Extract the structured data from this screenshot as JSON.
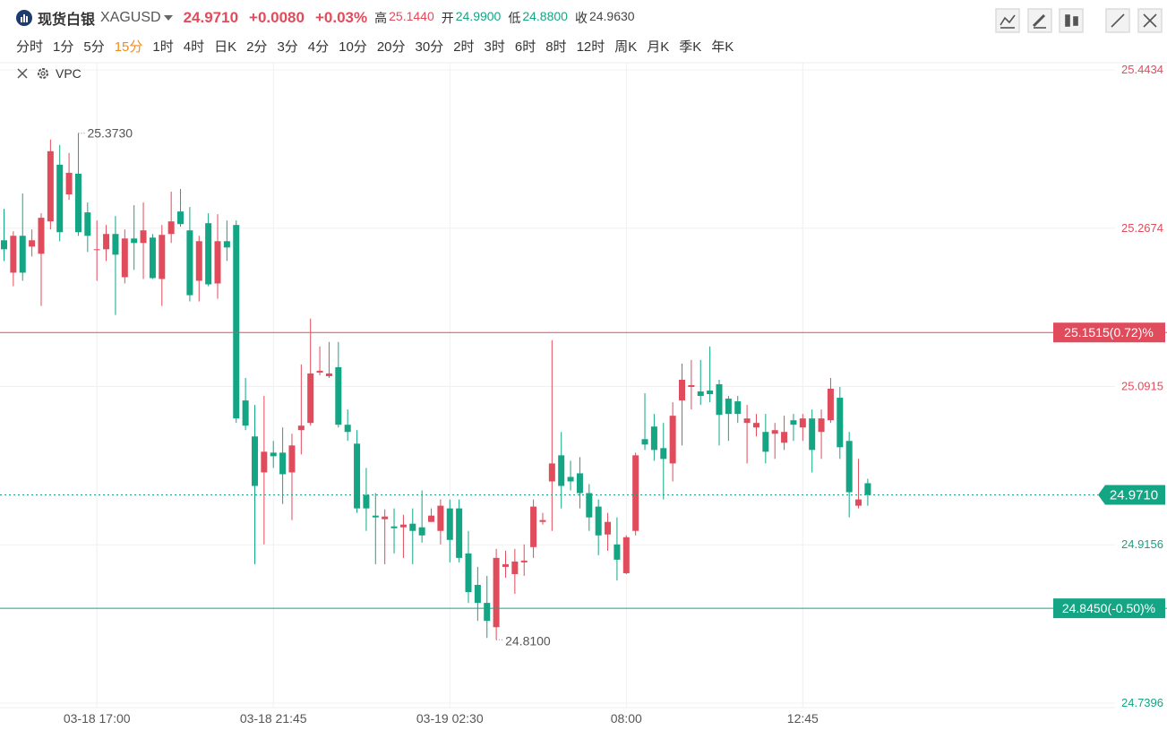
{
  "header": {
    "name": "现货白银",
    "symbol": "XAGUSD",
    "price": "24.9710",
    "change": "+0.0080",
    "change_pct": "+0.03%",
    "stats": [
      {
        "label": "高",
        "value": "25.1440",
        "color": "#e04c5c"
      },
      {
        "label": "开",
        "value": "24.9900",
        "color": "#14a584"
      },
      {
        "label": "低",
        "value": "24.8800",
        "color": "#14a584"
      },
      {
        "label": "收",
        "value": "24.9630",
        "color": "#444444"
      }
    ]
  },
  "periods": [
    "分时",
    "1分",
    "5分",
    "15分",
    "1时",
    "4时",
    "日K",
    "2分",
    "3分",
    "4分",
    "10分",
    "20分",
    "30分",
    "2时",
    "3时",
    "6时",
    "8时",
    "12时",
    "周K",
    "月K",
    "季K",
    "年K"
  ],
  "active_period": "15分",
  "indicator": "VPC",
  "chart_data": {
    "type": "candlestick",
    "categories": [
      null,
      null,
      null,
      null,
      null,
      null,
      null,
      null,
      null,
      null,
      "03-18 17:00",
      null,
      null,
      null,
      null,
      null,
      null,
      null,
      null,
      null,
      null,
      null,
      null,
      null,
      null,
      null,
      null,
      null,
      null,
      "03-18 21:45",
      null,
      null,
      null,
      null,
      null,
      null,
      null,
      null,
      null,
      null,
      null,
      null,
      null,
      null,
      null,
      null,
      null,
      null,
      "03-19 02:30",
      null,
      null,
      null,
      null,
      null,
      null,
      null,
      null,
      null,
      null,
      null,
      null,
      null,
      null,
      null,
      null,
      null,
      null,
      "08:00",
      null,
      null,
      null,
      null,
      null,
      null,
      null,
      null,
      null,
      null,
      null,
      null,
      null,
      null,
      null,
      null,
      null,
      null,
      "12:45",
      null,
      null,
      null,
      null,
      null,
      null,
      null
    ],
    "open": [
      25.254,
      25.218,
      25.259,
      25.247,
      25.239,
      25.275,
      25.338,
      25.305,
      25.328,
      25.285,
      25.243,
      25.244,
      25.261,
      25.213,
      25.256,
      25.251,
      25.257,
      25.211,
      25.261,
      25.286,
      25.265,
      25.209,
      25.273,
      25.206,
      25.253,
      25.271,
      25.076,
      25.036,
      24.996,
      25.018,
      25.018,
      24.996,
      25.043,
      25.051,
      25.107,
      25.103,
      25.113,
      25.049,
      25.028,
      24.971,
      24.948,
      24.944,
      24.936,
      24.935,
      24.939,
      24.935,
      24.941,
      24.931,
      24.956,
      24.956,
      24.906,
      24.871,
      24.851,
      24.824,
      24.891,
      24.883,
      24.896,
      24.913,
      24.941,
      24.986,
      25.015,
      24.991,
      24.995,
      24.973,
      24.958,
      24.927,
      24.916,
      24.884,
      24.931,
      25.033,
      25.047,
      25.023,
      25.006,
      25.076,
      25.091,
      25.086,
      25.087,
      25.094,
      25.078,
      25.075,
      25.051,
      25.046,
      25.041,
      25.039,
      25.029,
      25.054,
      25.046,
      25.056,
      25.041,
      25.054,
      25.079,
      25.031,
      24.959,
      24.984
    ],
    "high": [
      25.289,
      25.264,
      25.306,
      25.266,
      25.284,
      25.366,
      25.36,
      25.351,
      25.373,
      25.296,
      25.276,
      25.271,
      25.281,
      25.266,
      25.293,
      25.296,
      25.261,
      25.271,
      25.308,
      25.311,
      25.291,
      25.259,
      25.284,
      25.283,
      25.276,
      25.276,
      25.101,
      25.071,
      25.081,
      25.031,
      25.046,
      25.039,
      25.116,
      25.167,
      25.136,
      25.141,
      25.141,
      25.066,
      25.043,
      25.001,
      24.973,
      24.955,
      24.956,
      24.949,
      24.956,
      24.976,
      24.956,
      24.966,
      24.966,
      24.966,
      24.931,
      24.891,
      24.881,
      24.911,
      24.909,
      24.911,
      24.916,
      24.966,
      24.951,
      25.143,
      25.041,
      25.009,
      25.013,
      24.983,
      24.966,
      24.951,
      24.946,
      24.926,
      25.018,
      25.084,
      25.061,
      25.051,
      25.074,
      25.117,
      25.121,
      25.121,
      25.136,
      25.099,
      25.081,
      25.081,
      25.071,
      25.061,
      25.061,
      25.051,
      25.059,
      25.061,
      25.061,
      25.066,
      25.066,
      25.101,
      25.091,
      25.041,
      25.011,
      24.989
    ],
    "low": [
      25.231,
      25.203,
      25.209,
      25.236,
      25.181,
      25.266,
      25.253,
      25.299,
      25.259,
      25.241,
      25.209,
      25.231,
      25.171,
      25.206,
      25.221,
      25.211,
      25.211,
      25.181,
      25.251,
      25.269,
      25.186,
      25.186,
      25.203,
      25.189,
      25.231,
      25.051,
      25.043,
      24.894,
      24.916,
      25.001,
      24.961,
      24.943,
      25.016,
      25.048,
      25.104,
      25.101,
      25.046,
      25.031,
      24.951,
      24.931,
      24.894,
      24.894,
      24.906,
      24.901,
      24.894,
      24.918,
      24.941,
      24.916,
      24.896,
      24.896,
      24.851,
      24.831,
      24.812,
      24.81,
      24.879,
      24.861,
      24.881,
      24.901,
      24.938,
      24.931,
      24.956,
      24.976,
      24.956,
      24.931,
      24.904,
      24.909,
      24.876,
      24.883,
      24.926,
      25.021,
      25.009,
      24.966,
      24.986,
      25.026,
      25.066,
      25.071,
      25.074,
      25.026,
      25.031,
      25.051,
      25.006,
      25.036,
      25.006,
      25.011,
      25.021,
      25.031,
      25.031,
      24.996,
      25.011,
      25.051,
      25.011,
      24.946,
      24.956,
      24.959
    ],
    "close": [
      25.244,
      25.259,
      25.218,
      25.254,
      25.279,
      25.353,
      25.263,
      25.329,
      25.263,
      25.259,
      25.244,
      25.261,
      25.238,
      25.256,
      25.251,
      25.265,
      25.212,
      25.26,
      25.275,
      25.272,
      25.193,
      25.253,
      25.205,
      25.253,
      25.246,
      25.056,
      25.048,
      24.981,
      25.019,
      25.014,
      24.994,
      25.026,
      25.048,
      25.106,
      25.109,
      25.106,
      25.049,
      25.041,
      24.956,
      24.956,
      24.946,
      24.947,
      24.934,
      24.938,
      24.931,
      24.926,
      24.948,
      24.959,
      24.921,
      24.901,
      24.863,
      24.851,
      24.831,
      24.901,
      24.894,
      24.897,
      24.898,
      24.958,
      24.943,
      25.006,
      24.981,
      24.986,
      24.973,
      24.946,
      24.926,
      24.941,
      24.899,
      24.924,
      25.015,
      25.027,
      25.021,
      25.011,
      25.059,
      25.099,
      25.093,
      25.081,
      25.083,
      25.06,
      25.061,
      25.061,
      25.056,
      25.051,
      25.019,
      25.043,
      25.041,
      25.049,
      25.056,
      25.021,
      25.056,
      25.089,
      25.024,
      24.974,
      24.966,
      24.971
    ],
    "up_color": "#e04c5c",
    "down_color": "#14a584",
    "ylim": [
      24.7396,
      25.4434
    ],
    "yticks": [
      25.4434,
      25.2674,
      25.0915,
      24.9156,
      24.7396
    ],
    "grid": true,
    "last_price": {
      "value": 24.971,
      "label": "24.9710"
    },
    "lines": [
      {
        "value": 25.1515,
        "label": "25.1515(0.72)%",
        "color": "#e04c5c"
      },
      {
        "value": 24.845,
        "label": "24.8450(-0.50)%",
        "color": "#14a584"
      }
    ],
    "max_label": {
      "value": 25.373,
      "label": "25.3730"
    },
    "min_label": {
      "value": 24.81,
      "label": "24.8100"
    }
  }
}
